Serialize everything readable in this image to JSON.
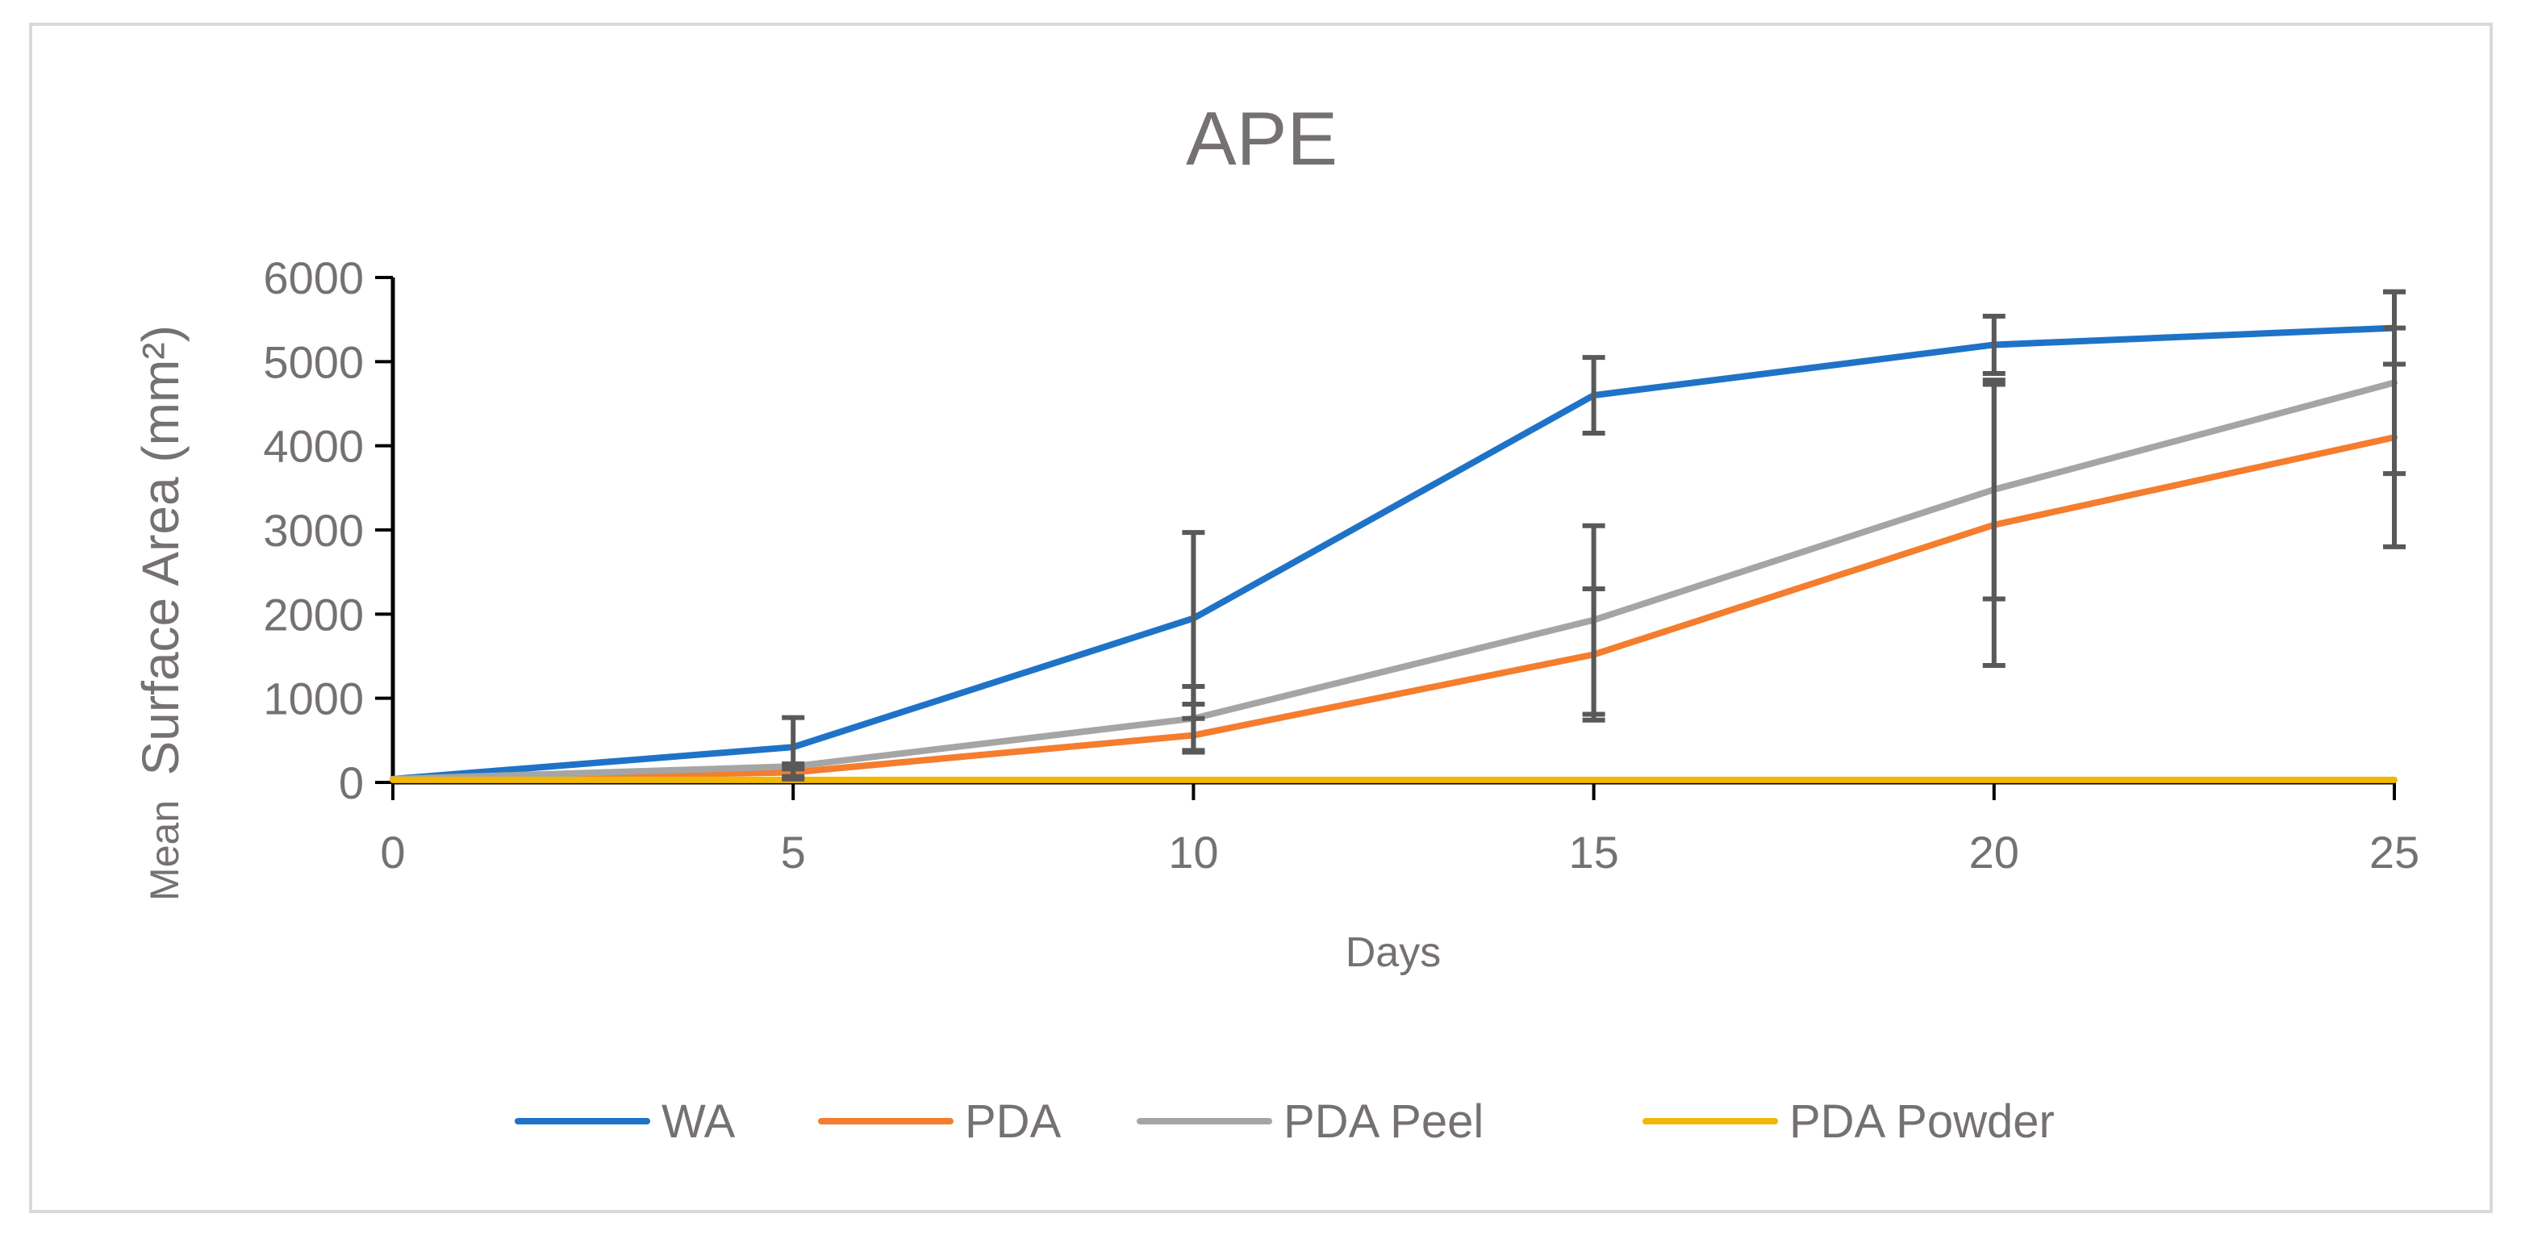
{
  "chart_data": {
    "type": "line",
    "title": "APE",
    "xlabel": "Days",
    "ylabel_prefix": "Mean",
    "ylabel_main": "Surface Area (mm²)",
    "x": [
      0,
      5,
      10,
      15,
      20,
      25
    ],
    "xlim": [
      0,
      25
    ],
    "ylim": [
      0,
      6000
    ],
    "x_ticks": [
      "0",
      "5",
      "10",
      "15",
      "20",
      "25"
    ],
    "y_ticks": [
      "0",
      "1000",
      "2000",
      "3000",
      "4000",
      "5000",
      "6000"
    ],
    "grid": false,
    "legend_position": "bottom",
    "series": [
      {
        "name": "WA",
        "color": "#1f73c7",
        "values": [
          40,
          420,
          1950,
          4600,
          5200,
          5400
        ],
        "errors": [
          0,
          350,
          1020,
          450,
          340,
          430
        ]
      },
      {
        "name": "PDA",
        "color": "#f47d2e",
        "values": [
          40,
          120,
          560,
          1520,
          3060,
          4100
        ],
        "errors": [
          0,
          80,
          200,
          780,
          1670,
          1300
        ]
      },
      {
        "name": "PDA Peel",
        "color": "#a5a5a5",
        "values": [
          40,
          190,
          760,
          1930,
          3480,
          4750
        ],
        "errors": [
          0,
          30,
          380,
          1120,
          1300,
          1080
        ]
      },
      {
        "name": "PDA Powder",
        "color": "#f2b705",
        "values": [
          30,
          30,
          30,
          30,
          30,
          30
        ],
        "errors": [
          0,
          0,
          0,
          0,
          0,
          0
        ]
      }
    ]
  }
}
